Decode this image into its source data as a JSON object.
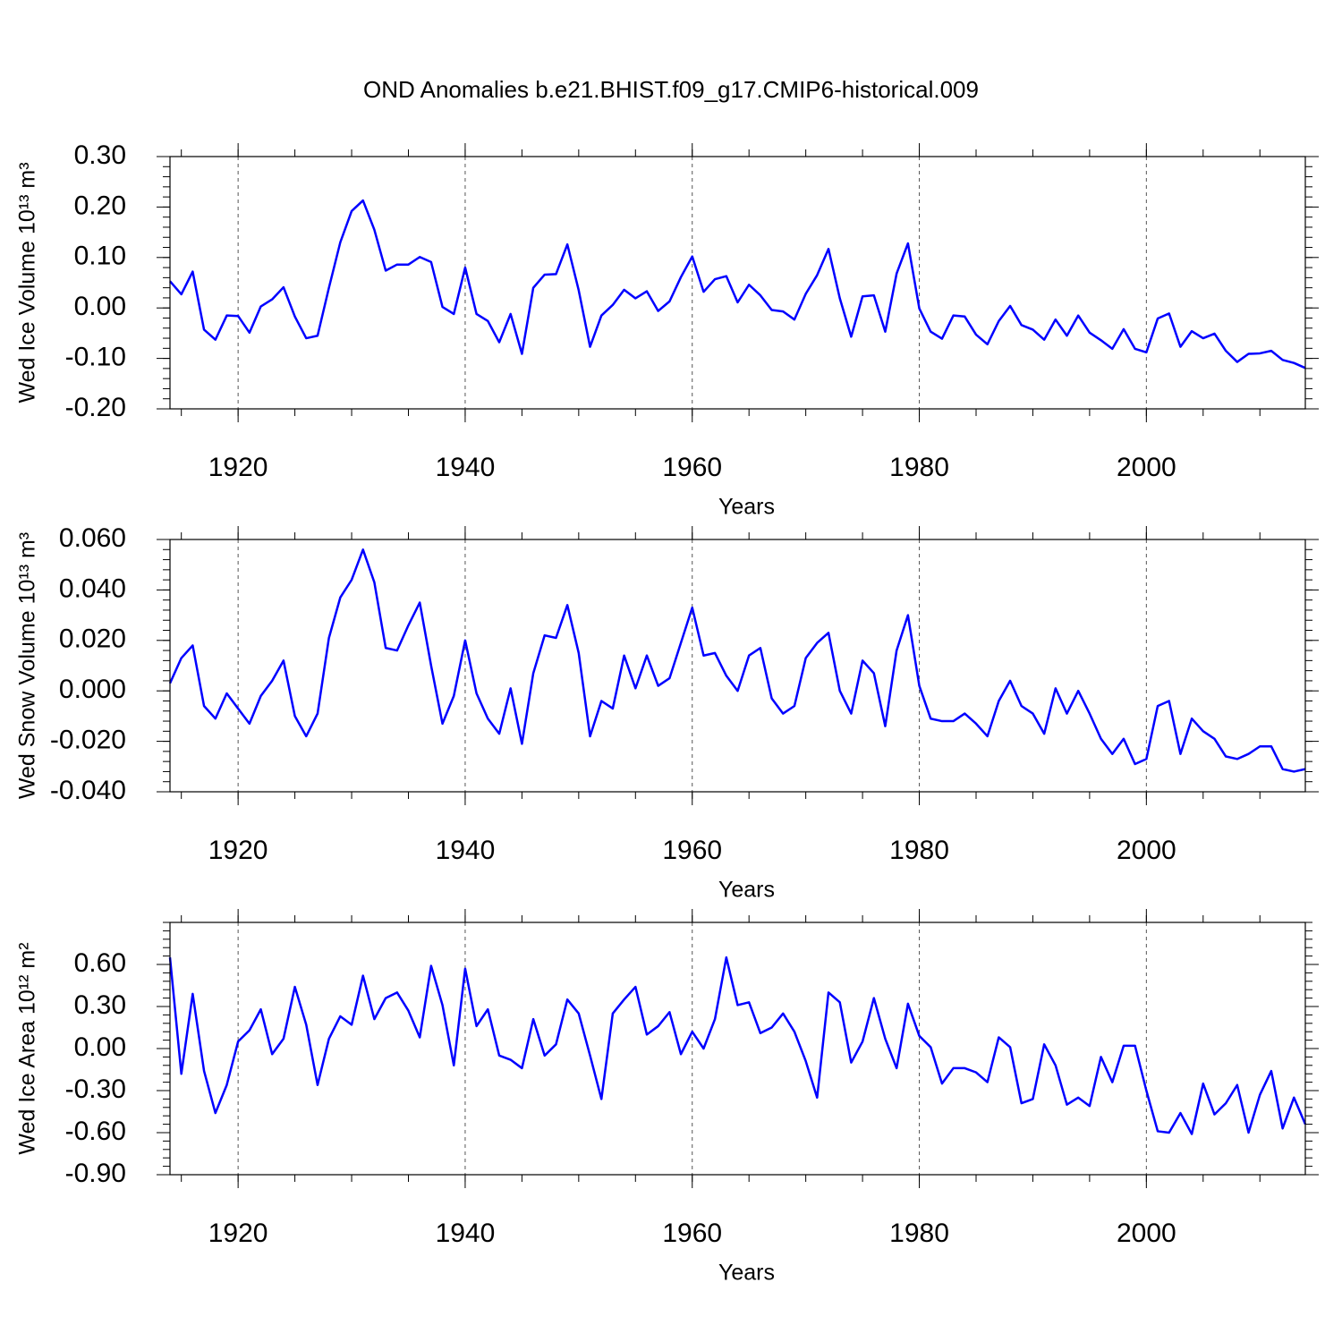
{
  "chart_data": [
    {
      "type": "line",
      "title": "OND Anomalies b.e21.BHIST.f09_g17.CMIP6-historical.009",
      "xlabel": "Years",
      "ylabel": "Wed Ice Volume 10¹³ m³",
      "color": "#0000ff",
      "xgrid": true,
      "xlim": [
        1914,
        2014
      ],
      "xticks": [
        1920,
        1940,
        1960,
        1980,
        2000
      ],
      "ylim": [
        -0.2,
        0.3
      ],
      "yticks": [
        {
          "value": -0.2,
          "label": "-0.20"
        },
        {
          "value": -0.1,
          "label": "-0.10"
        },
        {
          "value": 0,
          "label": "0.00"
        },
        {
          "value": 0.1,
          "label": "0.10"
        },
        {
          "value": 0.2,
          "label": "0.20"
        },
        {
          "value": 0.3,
          "label": "0.30"
        }
      ],
      "x": [
        1914,
        1915,
        1916,
        1917,
        1918,
        1919,
        1920,
        1921,
        1922,
        1923,
        1924,
        1925,
        1926,
        1927,
        1928,
        1929,
        1930,
        1931,
        1932,
        1933,
        1934,
        1935,
        1936,
        1937,
        1938,
        1939,
        1940,
        1941,
        1942,
        1943,
        1944,
        1945,
        1946,
        1947,
        1948,
        1949,
        1950,
        1951,
        1952,
        1953,
        1954,
        1955,
        1956,
        1957,
        1958,
        1959,
        1960,
        1961,
        1962,
        1963,
        1964,
        1965,
        1966,
        1967,
        1968,
        1969,
        1970,
        1971,
        1972,
        1973,
        1974,
        1975,
        1976,
        1977,
        1978,
        1979,
        1980,
        1981,
        1982,
        1983,
        1984,
        1985,
        1986,
        1987,
        1988,
        1989,
        1990,
        1991,
        1992,
        1993,
        1994,
        1995,
        1996,
        1997,
        1998,
        1999,
        2000,
        2001,
        2002,
        2003,
        2004,
        2005,
        2006,
        2007,
        2008,
        2009,
        2010,
        2011,
        2012,
        2013,
        2014
      ],
      "values": [
        0.053,
        0.027,
        0.072,
        -0.043,
        -0.063,
        -0.015,
        -0.016,
        -0.049,
        0.003,
        0.017,
        0.041,
        -0.017,
        -0.06,
        -0.055,
        0.04,
        0.13,
        0.192,
        0.213,
        0.155,
        0.074,
        0.086,
        0.086,
        0.101,
        0.091,
        0.002,
        -0.012,
        0.08,
        -0.012,
        -0.026,
        -0.068,
        -0.012,
        -0.091,
        0.04,
        0.066,
        0.067,
        0.126,
        0.035,
        -0.077,
        -0.015,
        0.006,
        0.036,
        0.019,
        0.033,
        -0.006,
        0.013,
        0.061,
        0.102,
        0.032,
        0.057,
        0.063,
        0.011,
        0.046,
        0.025,
        -0.004,
        -0.007,
        -0.023,
        0.028,
        0.065,
        0.117,
        0.019,
        -0.057,
        0.023,
        0.025,
        -0.047,
        0.068,
        0.128,
        -0.001,
        -0.047,
        -0.061,
        -0.015,
        -0.017,
        -0.053,
        -0.072,
        -0.026,
        0.004,
        -0.034,
        -0.043,
        -0.063,
        -0.023,
        -0.055,
        -0.015,
        -0.049,
        -0.064,
        -0.081,
        -0.042,
        -0.081,
        -0.088,
        -0.021,
        -0.011,
        -0.077,
        -0.046,
        -0.06,
        -0.051,
        -0.085,
        -0.107,
        -0.091,
        -0.09,
        -0.085,
        -0.103,
        -0.109,
        -0.119
      ]
    },
    {
      "type": "line",
      "xlabel": "Years",
      "ylabel": "Wed Snow Volume 10¹³ m³",
      "color": "#0000ff",
      "xgrid": true,
      "xlim": [
        1914,
        2014
      ],
      "xticks": [
        1920,
        1940,
        1960,
        1980,
        2000
      ],
      "ylim": [
        -0.04,
        0.06
      ],
      "yticks": [
        {
          "value": -0.04,
          "label": "-0.040"
        },
        {
          "value": -0.02,
          "label": "-0.020"
        },
        {
          "value": 0,
          "label": "0.000"
        },
        {
          "value": 0.02,
          "label": "0.020"
        },
        {
          "value": 0.04,
          "label": "0.040"
        },
        {
          "value": 0.06,
          "label": "0.060"
        }
      ],
      "x": [
        1914,
        1915,
        1916,
        1917,
        1918,
        1919,
        1920,
        1921,
        1922,
        1923,
        1924,
        1925,
        1926,
        1927,
        1928,
        1929,
        1930,
        1931,
        1932,
        1933,
        1934,
        1935,
        1936,
        1937,
        1938,
        1939,
        1940,
        1941,
        1942,
        1943,
        1944,
        1945,
        1946,
        1947,
        1948,
        1949,
        1950,
        1951,
        1952,
        1953,
        1954,
        1955,
        1956,
        1957,
        1958,
        1959,
        1960,
        1961,
        1962,
        1963,
        1964,
        1965,
        1966,
        1967,
        1968,
        1969,
        1970,
        1971,
        1972,
        1973,
        1974,
        1975,
        1976,
        1977,
        1978,
        1979,
        1980,
        1981,
        1982,
        1983,
        1984,
        1985,
        1986,
        1987,
        1988,
        1989,
        1990,
        1991,
        1992,
        1993,
        1994,
        1995,
        1996,
        1997,
        1998,
        1999,
        2000,
        2001,
        2002,
        2003,
        2004,
        2005,
        2006,
        2007,
        2008,
        2009,
        2010,
        2011,
        2012,
        2013,
        2014
      ],
      "values": [
        0.003,
        0.013,
        0.018,
        -0.006,
        -0.011,
        -0.001,
        -0.007,
        -0.013,
        -0.002,
        0.004,
        0.012,
        -0.01,
        -0.018,
        -0.009,
        0.021,
        0.037,
        0.044,
        0.056,
        0.043,
        0.017,
        0.016,
        0.026,
        0.035,
        0.01,
        -0.013,
        -0.002,
        0.02,
        -0.001,
        -0.011,
        -0.017,
        0.001,
        -0.021,
        0.007,
        0.022,
        0.021,
        0.034,
        0.015,
        -0.018,
        -0.004,
        -0.007,
        0.014,
        0.001,
        0.014,
        0.002,
        0.005,
        0.019,
        0.033,
        0.014,
        0.015,
        0.006,
        0,
        0.014,
        0.017,
        -0.003,
        -0.009,
        -0.006,
        0.013,
        0.019,
        0.023,
        0,
        -0.009,
        0.012,
        0.007,
        -0.014,
        0.016,
        0.03,
        0.002,
        -0.011,
        -0.012,
        -0.012,
        -0.009,
        -0.013,
        -0.018,
        -0.004,
        0.004,
        -0.006,
        -0.009,
        -0.017,
        0.001,
        -0.009,
        0,
        -0.009,
        -0.019,
        -0.025,
        -0.019,
        -0.029,
        -0.027,
        -0.006,
        -0.004,
        -0.025,
        -0.011,
        -0.016,
        -0.019,
        -0.026,
        -0.027,
        -0.025,
        -0.022,
        -0.022,
        -0.031,
        -0.032,
        -0.031
      ]
    },
    {
      "type": "line",
      "xlabel": "Years",
      "ylabel": "Wed Ice Area 10¹² m²",
      "color": "#0000ff",
      "xgrid": true,
      "xlim": [
        1914,
        2014
      ],
      "xticks": [
        1920,
        1940,
        1960,
        1980,
        2000
      ],
      "ylim": [
        -0.9,
        0.9
      ],
      "yticks": [
        {
          "value": -0.9,
          "label": "-0.90"
        },
        {
          "value": -0.6,
          "label": "-0.60"
        },
        {
          "value": -0.3,
          "label": "-0.30"
        },
        {
          "value": 0,
          "label": "0.00"
        },
        {
          "value": 0.3,
          "label": "0.30"
        },
        {
          "value": 0.6,
          "label": "0.60"
        }
      ],
      "x": [
        1914,
        1915,
        1916,
        1917,
        1918,
        1919,
        1920,
        1921,
        1922,
        1923,
        1924,
        1925,
        1926,
        1927,
        1928,
        1929,
        1930,
        1931,
        1932,
        1933,
        1934,
        1935,
        1936,
        1937,
        1938,
        1939,
        1940,
        1941,
        1942,
        1943,
        1944,
        1945,
        1946,
        1947,
        1948,
        1949,
        1950,
        1951,
        1952,
        1953,
        1954,
        1955,
        1956,
        1957,
        1958,
        1959,
        1960,
        1961,
        1962,
        1963,
        1964,
        1965,
        1966,
        1967,
        1968,
        1969,
        1970,
        1971,
        1972,
        1973,
        1974,
        1975,
        1976,
        1977,
        1978,
        1979,
        1980,
        1981,
        1982,
        1983,
        1984,
        1985,
        1986,
        1987,
        1988,
        1989,
        1990,
        1991,
        1992,
        1993,
        1994,
        1995,
        1996,
        1997,
        1998,
        1999,
        2000,
        2001,
        2002,
        2003,
        2004,
        2005,
        2006,
        2007,
        2008,
        2009,
        2010,
        2011,
        2012,
        2013,
        2014
      ],
      "values": [
        0.65,
        -0.18,
        0.39,
        -0.16,
        -0.46,
        -0.26,
        0.05,
        0.13,
        0.28,
        -0.04,
        0.07,
        0.44,
        0.17,
        -0.26,
        0.07,
        0.23,
        0.17,
        0.52,
        0.21,
        0.36,
        0.4,
        0.27,
        0.08,
        0.59,
        0.31,
        -0.12,
        0.57,
        0.16,
        0.28,
        -0.05,
        -0.08,
        -0.14,
        0.21,
        -0.05,
        0.03,
        0.35,
        0.25,
        -0.05,
        -0.36,
        0.25,
        0.35,
        0.44,
        0.1,
        0.16,
        0.26,
        -0.04,
        0.12,
        0,
        0.21,
        0.65,
        0.31,
        0.33,
        0.11,
        0.15,
        0.25,
        0.12,
        -0.09,
        -0.35,
        0.4,
        0.33,
        -0.1,
        0.05,
        0.36,
        0.07,
        -0.14,
        0.32,
        0.09,
        0.01,
        -0.25,
        -0.14,
        -0.14,
        -0.17,
        -0.24,
        0.08,
        0.01,
        -0.39,
        -0.36,
        0.03,
        -0.12,
        -0.4,
        -0.35,
        -0.41,
        -0.06,
        -0.24,
        0.02,
        0.02,
        -0.3,
        -0.59,
        -0.6,
        -0.46,
        -0.61,
        -0.25,
        -0.47,
        -0.39,
        -0.26,
        -0.6,
        -0.33,
        -0.16,
        -0.57,
        -0.35,
        -0.54
      ]
    }
  ]
}
